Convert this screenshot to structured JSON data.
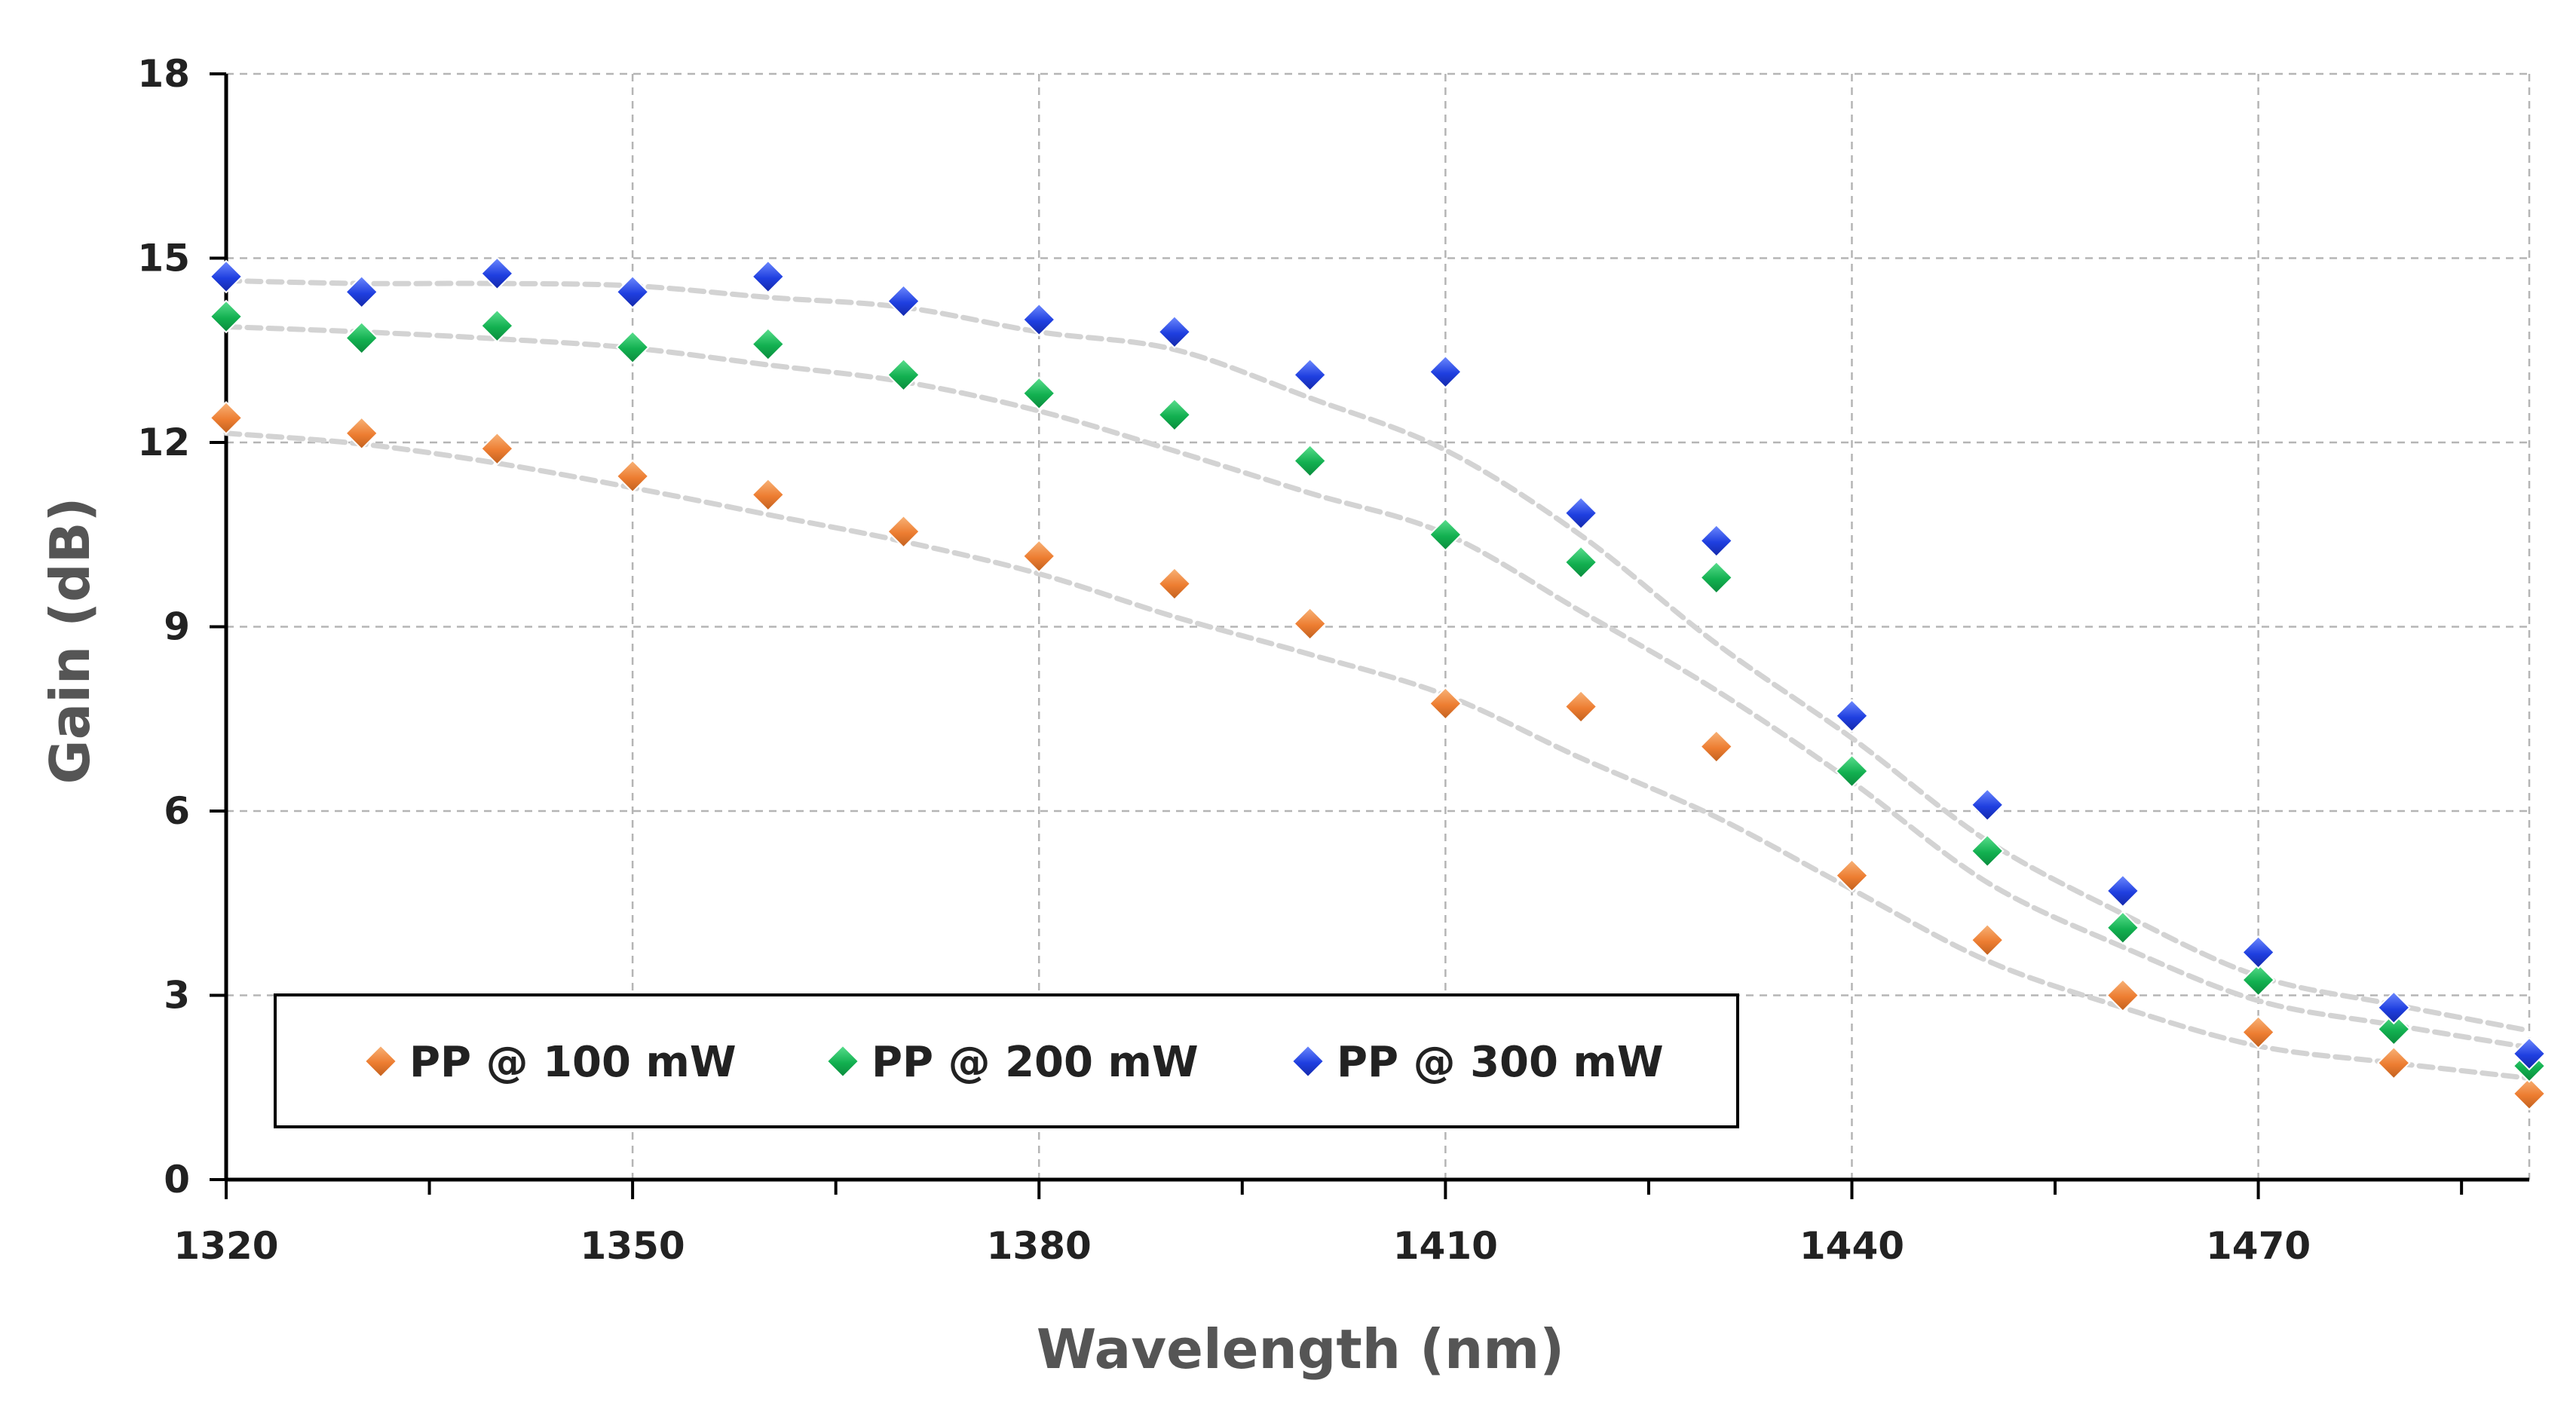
{
  "chart_data": {
    "type": "scatter",
    "title": "",
    "xlabel": "Wavelength (nm)",
    "ylabel": "Gain (dB)",
    "xlim": [
      1320,
      1490
    ],
    "ylim": [
      0,
      18
    ],
    "xticks": [
      1320,
      1350,
      1380,
      1410,
      1440,
      1470
    ],
    "xtick_labels": [
      "1320",
      "1350",
      "1380",
      "1410",
      "1440",
      "1470"
    ],
    "yticks": [
      0,
      3,
      6,
      9,
      12,
      15,
      18
    ],
    "ytick_labels": [
      "0",
      "3",
      "6",
      "9",
      "12",
      "15",
      "18"
    ],
    "grid": true,
    "legend_position": "bottom-left",
    "x": [
      1320,
      1330,
      1340,
      1350,
      1360,
      1370,
      1380,
      1390,
      1400,
      1410,
      1420,
      1430,
      1440,
      1450,
      1460,
      1470,
      1480,
      1490
    ],
    "series": [
      {
        "name": "PP @ 100 mW",
        "color": "#ED7D31",
        "values": [
          12.4,
          12.15,
          11.9,
          11.45,
          11.15,
          10.55,
          10.15,
          9.7,
          9.05,
          7.75,
          7.7,
          7.05,
          4.95,
          3.9,
          3.0,
          2.4,
          1.9,
          1.4
        ]
      },
      {
        "name": "PP @ 200 mW",
        "color": "#12B050",
        "values": [
          14.05,
          13.7,
          13.9,
          13.55,
          13.6,
          13.1,
          12.8,
          12.45,
          11.7,
          10.5,
          10.05,
          9.8,
          6.65,
          5.35,
          4.1,
          3.25,
          2.45,
          1.85
        ]
      },
      {
        "name": "PP @ 300 mW",
        "color": "#1F3FE0",
        "values": [
          14.7,
          14.45,
          14.75,
          14.45,
          14.7,
          14.3,
          14.0,
          13.8,
          13.1,
          13.15,
          10.85,
          10.4,
          7.55,
          6.1,
          4.7,
          3.7,
          2.8,
          2.05
        ]
      }
    ],
    "trendline_color": "#D3D3D3"
  }
}
